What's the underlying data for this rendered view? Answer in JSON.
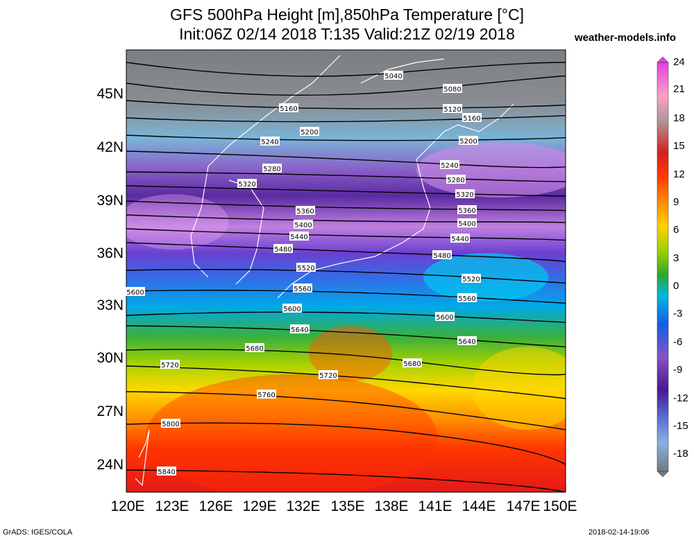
{
  "title": {
    "line1": "GFS 500hPa Height [m],850hPa Temperature [°C]",
    "line2": "Init:06Z 02/14 2018 T:135 Valid:21Z 02/19 2018"
  },
  "brand": "weather-models.info",
  "footer": {
    "left": "GrADS: IGES/COLA",
    "right": "2018-02-14-19:06"
  },
  "map": {
    "lat_labels": [
      "45N",
      "42N",
      "39N",
      "36N",
      "33N",
      "30N",
      "27N",
      "24N"
    ],
    "lon_labels": [
      "120E",
      "123E",
      "126E",
      "129E",
      "132E",
      "135E",
      "138E",
      "141E",
      "144E",
      "147E",
      "150E"
    ]
  },
  "contour_labels": [
    "5040",
    "5080",
    "5120",
    "5160",
    "5160",
    "5200",
    "5200",
    "5240",
    "5240",
    "5280",
    "5280",
    "5320",
    "5320",
    "5360",
    "5360",
    "5400",
    "5400",
    "5440",
    "5440",
    "5480",
    "5480",
    "5520",
    "5520",
    "5560",
    "5560",
    "5600",
    "5600",
    "5600",
    "5640",
    "5640",
    "5680",
    "5680",
    "5720",
    "5720",
    "5760",
    "5800",
    "5840"
  ],
  "colorbar": {
    "labels": [
      "24",
      "21",
      "18",
      "15",
      "12",
      "9",
      "6",
      "3",
      "0",
      "-3",
      "-6",
      "-9",
      "-12",
      "-15",
      "-18"
    ],
    "colors": [
      "#e040e0",
      "#ff9ec8",
      "#b09a9a",
      "#d42020",
      "#ff3a00",
      "#ff8c00",
      "#ffd000",
      "#9ed200",
      "#2aa82a",
      "#00b8e0",
      "#1060e8",
      "#8a50c8",
      "#4a1890",
      "#5870d8",
      "#8ab0e0",
      "#707a80"
    ]
  }
}
